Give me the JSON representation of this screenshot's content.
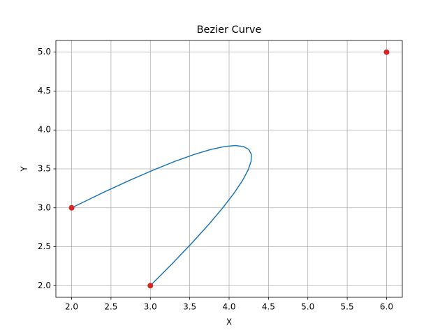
{
  "chart_data": {
    "type": "bezier",
    "title": "Bezier Curve",
    "x_label": "X",
    "y_label": "Y",
    "xlim": [
      1.8,
      6.2
    ],
    "ylim": [
      1.85,
      5.15
    ],
    "xticks": [
      {
        "value": 2,
        "label": "2.0"
      },
      2.5,
      {
        "value": 3,
        "label": "3.0"
      },
      3.5,
      {
        "value": 4,
        "label": "4.0"
      },
      4.5,
      {
        "value": 5,
        "label": "5.0"
      },
      5.5,
      {
        "value": 6,
        "label": "6.0"
      }
    ],
    "yticks": [
      {
        "value": 2,
        "label": "2.0"
      },
      2.5,
      {
        "value": 3,
        "label": "3.0"
      },
      3.5,
      {
        "value": 4,
        "label": "4.0"
      },
      4.5,
      {
        "value": 5,
        "label": "5.0"
      }
    ],
    "grid": true,
    "curve": {
      "color": "#1f77b4",
      "x": [
        2,
        2.3825,
        2.73,
        3.0425,
        3.32,
        3.5625,
        3.77,
        3.9425,
        4.08,
        4.1825,
        4.25,
        4.2825,
        4.28,
        4.2425,
        4.17,
        4.0625,
        3.92,
        3.7425,
        3.53,
        3.2825,
        3
      ],
      "y": [
        3,
        3.1875,
        3.35,
        3.4875,
        3.6,
        3.6875,
        3.75,
        3.7875,
        3.8,
        3.7875,
        3.75,
        3.6875,
        3.6,
        3.4875,
        3.35,
        3.1875,
        3,
        2.7875,
        2.55,
        2.2875,
        2
      ]
    },
    "control_points": {
      "color": "#d62728",
      "x": [
        2,
        6,
        3
      ],
      "y": [
        3,
        5,
        2
      ]
    }
  }
}
